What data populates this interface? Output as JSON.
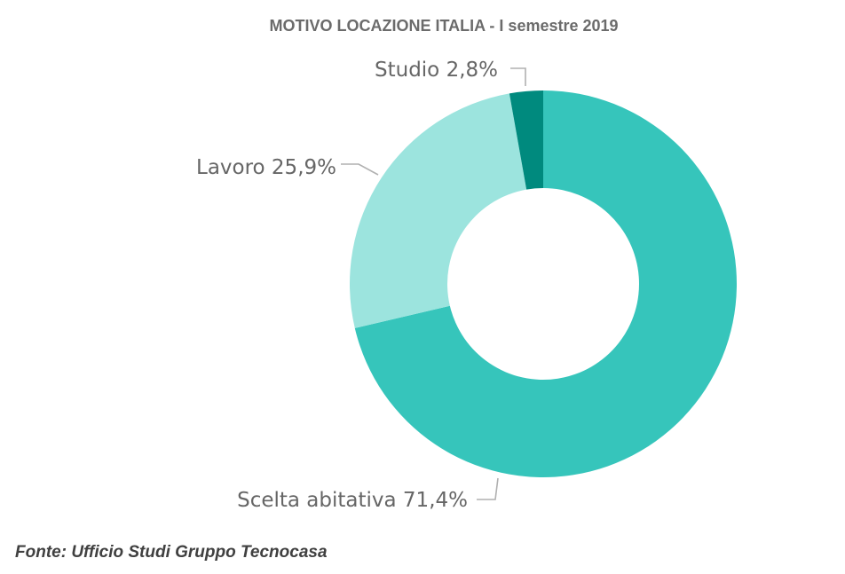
{
  "chart_data": {
    "type": "pie",
    "subtype": "donut",
    "title": "MOTIVO LOCAZIONE ITALIA - I semestre 2019",
    "categories": [
      "Scelta abitativa",
      "Lavoro",
      "Studio"
    ],
    "values": [
      71.4,
      25.9,
      2.8
    ],
    "unit": "%",
    "labels": [
      "Scelta abitativa 71,4%",
      "Lavoro 25,9%",
      "Studio 2,8%"
    ],
    "colors": [
      "#36c5bb",
      "#9ce4de",
      "#008a7e"
    ],
    "legend": "none",
    "data_labels": "outside with leader lines"
  },
  "footer": {
    "source": "Fonte: Ufficio Studi Gruppo Tecnocasa"
  }
}
